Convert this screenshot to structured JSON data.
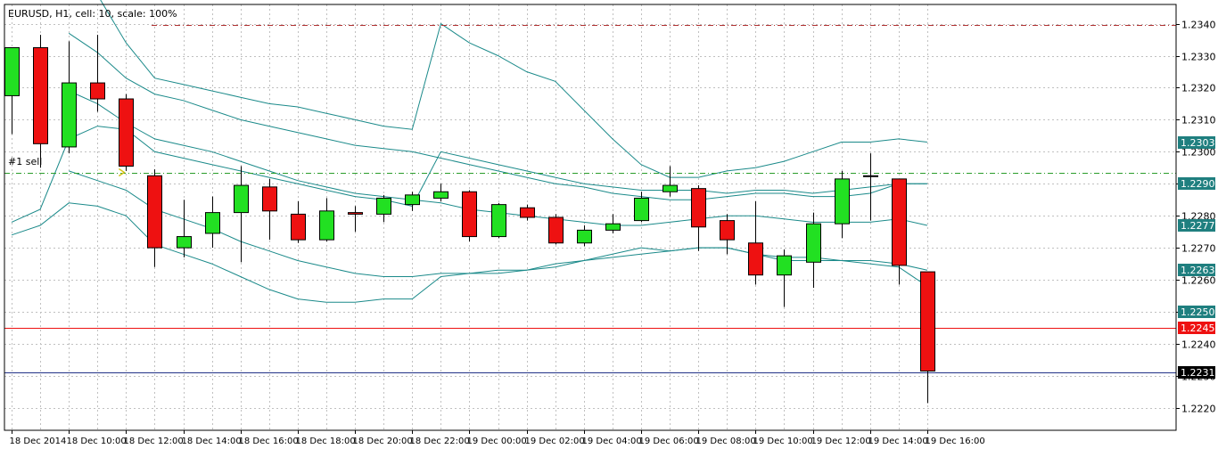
{
  "window": {
    "title": "EURUSD, H1, cell: 10, scale: 100%"
  },
  "colors": {
    "background": "#ffffff",
    "grid": "#c0c0c0",
    "frame": "#000000",
    "bull_body": "#22e022",
    "bear_body": "#ee1111",
    "wick": "#000000",
    "bands": "#1b8a8a",
    "order_line": "#2a9d2a",
    "top_line": "#b03030",
    "bid_line": "#ee1111",
    "ask_line": "#223388",
    "label_bg_teal": "#1f7f7f"
  },
  "chart_data": {
    "type": "candlestick",
    "symbol": "EURUSD",
    "timeframe": "H1",
    "ylim": [
      1.2213,
      1.2346
    ],
    "y_ticks": [
      "1.2340",
      "1.2330",
      "1.2320",
      "1.2310",
      "1.2300",
      "1.2290",
      "1.2280",
      "1.2270",
      "1.2260",
      "1.2250",
      "1.2240",
      "1.2230",
      "1.2220"
    ],
    "x_labels": [
      {
        "index": 0,
        "text": "18 Dec 2014"
      },
      {
        "index": 2,
        "text": "18 Dec 10:00"
      },
      {
        "index": 4,
        "text": "18 Dec 12:00"
      },
      {
        "index": 6,
        "text": "18 Dec 14:00"
      },
      {
        "index": 8,
        "text": "18 Dec 16:00"
      },
      {
        "index": 10,
        "text": "18 Dec 18:00"
      },
      {
        "index": 12,
        "text": "18 Dec 20:00"
      },
      {
        "index": 14,
        "text": "18 Dec 22:00"
      },
      {
        "index": 16,
        "text": "19 Dec 00:00"
      },
      {
        "index": 18,
        "text": "19 Dec 02:00"
      },
      {
        "index": 20,
        "text": "19 Dec 04:00"
      },
      {
        "index": 22,
        "text": "19 Dec 06:00"
      },
      {
        "index": 24,
        "text": "19 Dec 08:00"
      },
      {
        "index": 26,
        "text": "19 Dec 10:00"
      },
      {
        "index": 28,
        "text": "19 Dec 12:00"
      },
      {
        "index": 30,
        "text": "19 Dec 14:00"
      },
      {
        "index": 32,
        "text": "19 Dec 16:00"
      }
    ],
    "candles": [
      {
        "o": 1.23175,
        "h": 1.23315,
        "l": 1.23055,
        "c": 1.23325
      },
      {
        "o": 1.23325,
        "h": 1.23365,
        "l": 1.2295,
        "c": 1.23025
      },
      {
        "o": 1.23015,
        "h": 1.23345,
        "l": 1.22995,
        "c": 1.23215
      },
      {
        "o": 1.23215,
        "h": 1.23365,
        "l": 1.23125,
        "c": 1.23165
      },
      {
        "o": 1.23165,
        "h": 1.2318,
        "l": 1.2294,
        "c": 1.22955
      },
      {
        "o": 1.22925,
        "h": 1.22945,
        "l": 1.2264,
        "c": 1.227
      },
      {
        "o": 1.227,
        "h": 1.2285,
        "l": 1.2267,
        "c": 1.22735
      },
      {
        "o": 1.22745,
        "h": 1.2286,
        "l": 1.227,
        "c": 1.2281
      },
      {
        "o": 1.2281,
        "h": 1.22955,
        "l": 1.22655,
        "c": 1.22895
      },
      {
        "o": 1.2289,
        "h": 1.22915,
        "l": 1.22725,
        "c": 1.22815
      },
      {
        "o": 1.22805,
        "h": 1.22845,
        "l": 1.22715,
        "c": 1.22725
      },
      {
        "o": 1.22725,
        "h": 1.22855,
        "l": 1.2272,
        "c": 1.22815
      },
      {
        "o": 1.2281,
        "h": 1.2283,
        "l": 1.2275,
        "c": 1.22805
      },
      {
        "o": 1.22805,
        "h": 1.22865,
        "l": 1.2278,
        "c": 1.22855
      },
      {
        "o": 1.22835,
        "h": 1.22875,
        "l": 1.22815,
        "c": 1.22865
      },
      {
        "o": 1.22855,
        "h": 1.229,
        "l": 1.22845,
        "c": 1.22875
      },
      {
        "o": 1.22875,
        "h": 1.2288,
        "l": 1.2272,
        "c": 1.22735
      },
      {
        "o": 1.22735,
        "h": 1.2284,
        "l": 1.2273,
        "c": 1.22835
      },
      {
        "o": 1.22825,
        "h": 1.22835,
        "l": 1.22785,
        "c": 1.22795
      },
      {
        "o": 1.22795,
        "h": 1.22805,
        "l": 1.2271,
        "c": 1.22715
      },
      {
        "o": 1.22715,
        "h": 1.2277,
        "l": 1.22705,
        "c": 1.22755
      },
      {
        "o": 1.22755,
        "h": 1.22805,
        "l": 1.22745,
        "c": 1.22775
      },
      {
        "o": 1.22785,
        "h": 1.22875,
        "l": 1.2278,
        "c": 1.22855
      },
      {
        "o": 1.22875,
        "h": 1.22955,
        "l": 1.2286,
        "c": 1.22895
      },
      {
        "o": 1.22885,
        "h": 1.22895,
        "l": 1.2269,
        "c": 1.22765
      },
      {
        "o": 1.22785,
        "h": 1.22805,
        "l": 1.2268,
        "c": 1.22725
      },
      {
        "o": 1.22715,
        "h": 1.22845,
        "l": 1.22585,
        "c": 1.22615
      },
      {
        "o": 1.22615,
        "h": 1.22695,
        "l": 1.22515,
        "c": 1.22675
      },
      {
        "o": 1.22655,
        "h": 1.2281,
        "l": 1.22575,
        "c": 1.22775
      },
      {
        "o": 1.22775,
        "h": 1.2294,
        "l": 1.2273,
        "c": 1.22915
      },
      {
        "o": 1.22925,
        "h": 1.22995,
        "l": 1.22785,
        "c": 1.22925
      },
      {
        "o": 1.22915,
        "h": 1.22915,
        "l": 1.22585,
        "c": 1.22645
      },
      {
        "o": 1.22625,
        "h": 1.22625,
        "l": 1.22215,
        "c": 1.22315
      }
    ],
    "bollinger_outer": {
      "upper": [
        null,
        null,
        1.2351,
        1.2349,
        1.2334,
        1.2323,
        1.2321,
        1.2319,
        1.2317,
        1.2315,
        1.2314,
        1.2312,
        1.231,
        1.2308,
        1.2307,
        1.234,
        1.2334,
        1.233,
        1.2325,
        1.2322,
        1.2313,
        1.2304,
        1.2296,
        1.2292,
        1.2292,
        1.2294,
        1.2295,
        1.2297,
        1.23,
        1.2303,
        1.2303,
        1.2304,
        1.2303
      ],
      "middle": [
        1.2278,
        1.2282,
        1.2304,
        1.2308,
        1.2307,
        1.23,
        1.2298,
        1.2296,
        1.2294,
        1.2292,
        1.229,
        1.2288,
        1.2286,
        1.2285,
        1.2283,
        1.23,
        1.2298,
        1.2296,
        1.2294,
        1.2292,
        1.229,
        1.2289,
        1.2288,
        1.2288,
        1.2288,
        1.2287,
        1.2288,
        1.2288,
        1.2287,
        1.2288,
        1.2289,
        1.229,
        1.229
      ],
      "lower": [
        1.2274,
        1.2277,
        1.2284,
        1.2283,
        1.228,
        1.2271,
        1.2268,
        1.2265,
        1.2261,
        1.2257,
        1.2254,
        1.2253,
        1.2253,
        1.2254,
        1.2254,
        1.2261,
        1.2262,
        1.2262,
        1.2263,
        1.2264,
        1.2266,
        1.2268,
        1.227,
        1.2269,
        1.227,
        1.227,
        1.2268,
        1.2267,
        1.2267,
        1.2266,
        1.2266,
        1.2265,
        1.2263
      ]
    },
    "bollinger_inner": {
      "upper": [
        null,
        null,
        1.2337,
        1.2331,
        1.2323,
        1.2318,
        1.2316,
        1.2313,
        1.231,
        1.2308,
        1.2306,
        1.2304,
        1.2302,
        1.2301,
        1.23,
        1.2298,
        1.2296,
        1.2294,
        1.2292,
        1.229,
        1.2289,
        1.2287,
        1.2286,
        1.2285,
        1.2285,
        1.2286,
        1.2287,
        1.2287,
        1.2286,
        1.2286,
        1.2287,
        1.229,
        1.229
      ],
      "middle": [
        null,
        null,
        1.2319,
        1.2315,
        1.2309,
        1.2304,
        1.2302,
        1.23,
        1.2297,
        1.2294,
        1.2291,
        1.2289,
        1.2287,
        1.2286,
        1.2285,
        1.2284,
        1.2282,
        1.2281,
        1.228,
        1.2279,
        1.2278,
        1.2277,
        1.2277,
        1.2278,
        1.2279,
        1.228,
        1.228,
        1.2279,
        1.2278,
        1.2278,
        1.2278,
        1.2279,
        1.2277
      ],
      "lower": [
        null,
        null,
        1.2294,
        1.2291,
        1.2288,
        1.2282,
        1.2279,
        1.2276,
        1.2272,
        1.2269,
        1.2266,
        1.2264,
        1.2262,
        1.2261,
        1.2261,
        1.2262,
        1.2262,
        1.2263,
        1.2263,
        1.2265,
        1.2266,
        1.2267,
        1.2268,
        1.2269,
        1.227,
        1.227,
        1.2268,
        1.2266,
        1.2266,
        1.2266,
        1.2265,
        1.2264,
        1.2258
      ]
    },
    "order": {
      "label": "#1 sell",
      "price": 1.22935
    },
    "top_level": 1.23395,
    "price_tags": [
      {
        "text": "1.2303",
        "price": 1.2303,
        "color": "#1f7f7f"
      },
      {
        "text": "1.2290",
        "price": 1.229,
        "color": "#1f7f7f"
      },
      {
        "text": "1.2277",
        "price": 1.2277,
        "color": "#1f7f7f"
      },
      {
        "text": "1.2263",
        "price": 1.2263,
        "color": "#1f7f7f"
      },
      {
        "text": "1.2250",
        "price": 1.225,
        "color": "#1f7f7f"
      },
      {
        "text": "1.2245",
        "price": 1.2245,
        "color": "#ee1111"
      },
      {
        "text": "1.2231",
        "price": 1.2231,
        "color": "#000000"
      }
    ],
    "bid": 1.2245,
    "ask": 1.2231
  }
}
